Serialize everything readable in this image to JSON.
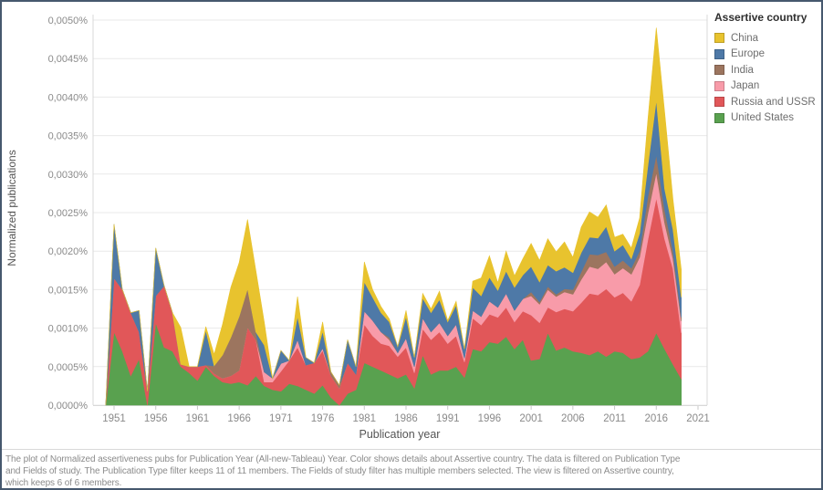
{
  "legend": {
    "title": "Assertive country",
    "items": [
      {
        "label": "China",
        "color": "#E8C32E"
      },
      {
        "label": "Europe",
        "color": "#4E79A7"
      },
      {
        "label": "India",
        "color": "#9C755F"
      },
      {
        "label": "Japan",
        "color": "#F89BA9"
      },
      {
        "label": "Russia and USSR",
        "color": "#E15759"
      },
      {
        "label": "United States",
        "color": "#59A14F"
      }
    ]
  },
  "caption": {
    "lines": [
      "The plot of Normalized assertiveness pubs for Publication Year (All-new-Tableau) Year.  Color shows details about Assertive country. The data is filtered on Publication Type",
      "and Fields of study. The Publication Type filter keeps 11 of 11 members. The Fields of study filter has multiple members selected. The view is filtered on Assertive country,",
      "which keeps 6 of 6 members."
    ]
  },
  "chart_data": {
    "type": "area",
    "stacked": true,
    "title": "",
    "xlabel": "Publication year",
    "ylabel": "Normalized publications",
    "unit": "percent of publications",
    "grid": true,
    "legend_position": "right",
    "ylim": [
      0,
      0.005
    ],
    "yticks": [
      0,
      0.0005,
      0.001,
      0.0015,
      0.002,
      0.0025,
      0.003,
      0.0035,
      0.004,
      0.0045,
      0.005
    ],
    "ytick_labels": [
      "0,0000%",
      "0,0005%",
      "0,0010%",
      "0,0015%",
      "0,0020%",
      "0,0025%",
      "0,0030%",
      "0,0035%",
      "0,0040%",
      "0,0045%",
      "0,0050%"
    ],
    "xticks": [
      1951,
      1956,
      1961,
      1966,
      1971,
      1976,
      1981,
      1986,
      1991,
      1996,
      2001,
      2006,
      2011,
      2016,
      2021
    ],
    "xtick_labels": [
      "1951",
      "1956",
      "1961",
      "1966",
      "1971",
      "1976",
      "1981",
      "1986",
      "1991",
      "1996",
      "2001",
      "2006",
      "2011",
      "2016",
      "2021"
    ],
    "stack_order_bottom_to_top": [
      "United States",
      "Russia and USSR",
      "Japan",
      "India",
      "Europe",
      "China"
    ],
    "x": [
      1950,
      1951,
      1952,
      1953,
      1954,
      1955,
      1956,
      1957,
      1958,
      1959,
      1960,
      1961,
      1962,
      1963,
      1964,
      1965,
      1966,
      1967,
      1968,
      1969,
      1970,
      1971,
      1972,
      1973,
      1974,
      1975,
      1976,
      1977,
      1978,
      1979,
      1980,
      1981,
      1982,
      1983,
      1984,
      1985,
      1986,
      1987,
      1988,
      1989,
      1990,
      1991,
      1992,
      1993,
      1994,
      1995,
      1996,
      1997,
      1998,
      1999,
      2000,
      2001,
      2002,
      2003,
      2004,
      2005,
      2006,
      2007,
      2008,
      2009,
      2010,
      2011,
      2012,
      2013,
      2014,
      2015,
      2016,
      2017,
      2018,
      2019
    ],
    "series": [
      {
        "name": "China",
        "color": "#E8C32E",
        "values": [
          0,
          0,
          0,
          0,
          0,
          0,
          0,
          0,
          0,
          0.00048,
          0,
          0,
          5e-05,
          0.00015,
          0.0004,
          0.00065,
          0.0007,
          0.0009,
          0.0008,
          0.0003,
          0,
          0,
          0,
          0.00026,
          0,
          0,
          0.00012,
          0,
          0,
          0,
          0,
          0.00026,
          0.0001,
          8e-05,
          4e-05,
          0,
          8e-05,
          0,
          6e-05,
          5e-05,
          0.00011,
          2e-05,
          5e-05,
          0,
          8e-05,
          0.00023,
          0.00028,
          0.0001,
          0.00026,
          0.00015,
          0.00021,
          0.0003,
          0.00028,
          0.00034,
          0.00025,
          0.00033,
          0.0002,
          0.00033,
          0.00033,
          0.00027,
          0.00028,
          0.00018,
          0.00014,
          0.00014,
          0.0002,
          0.0006,
          0.00094,
          0.001,
          0.00039,
          0.00036
        ]
      },
      {
        "name": "Europe",
        "color": "#4E79A7",
        "values": [
          0,
          0.0007,
          0,
          0,
          0.00028,
          0,
          0.00062,
          0,
          0,
          0,
          0,
          0,
          0.00045,
          0,
          0,
          0,
          0,
          0,
          0,
          0.00035,
          0,
          0.00017,
          0,
          0.0003,
          0.0001,
          0,
          0.00022,
          0,
          0,
          0.0003,
          0.0001,
          0.00038,
          0.0003,
          0.00025,
          0.0002,
          8e-05,
          0.00028,
          0.00012,
          0.00026,
          0.00025,
          0.0003,
          0.00018,
          0.00025,
          0.00012,
          0.0003,
          0.00027,
          0.00031,
          0.00022,
          0.00029,
          0.0003,
          0.00031,
          0.00033,
          0.00026,
          0.00028,
          0.0003,
          0.00028,
          0.00022,
          0.00025,
          0.00022,
          0.00022,
          0.00033,
          0.0002,
          0.0002,
          0.00012,
          0.00023,
          0.0004,
          0.00071,
          0.00027,
          0.00028,
          0.00026
        ]
      },
      {
        "name": "India",
        "color": "#9C755F",
        "values": [
          0,
          0,
          0,
          0,
          0,
          0,
          0,
          0,
          0,
          0,
          0,
          0,
          0,
          0.0001,
          0.0003,
          0.0005,
          0.0007,
          0.0005,
          0.0001,
          0,
          0,
          0,
          0,
          0,
          0,
          0,
          0,
          5e-05,
          4e-05,
          0,
          0,
          0,
          0,
          0,
          3e-05,
          0,
          0,
          0,
          0,
          0,
          0,
          0,
          0,
          0,
          0,
          0,
          0,
          0,
          0,
          0,
          0,
          5e-05,
          3e-05,
          4e-05,
          3e-05,
          4e-05,
          6e-05,
          0.0001,
          0.00016,
          0.00018,
          0.00013,
          0.0001,
          0.0001,
          8e-05,
          8e-05,
          0.00022,
          0.00023,
          0.00017,
          0.0001,
          5e-05
        ]
      },
      {
        "name": "Japan",
        "color": "#F89BA9",
        "values": [
          0,
          0,
          0,
          0,
          0,
          0,
          0,
          0,
          0,
          0,
          0,
          0,
          0,
          0,
          0,
          0,
          0,
          0,
          0,
          0.00013,
          5e-05,
          0.0001,
          0,
          0.0001,
          0,
          0,
          3e-05,
          0,
          0,
          0,
          0,
          0.00017,
          0.0002,
          0.00015,
          8e-05,
          5e-05,
          0.00012,
          8e-05,
          0.00014,
          0.0001,
          0.00012,
          0.0001,
          0.00015,
          5e-05,
          0.0001,
          0.00011,
          0.00017,
          0.00013,
          0.00018,
          0.00015,
          0.00016,
          0.00025,
          0.00024,
          0.00023,
          0.0002,
          0.00022,
          0.00022,
          0.0003,
          0.00035,
          0.00034,
          0.00035,
          0.0003,
          0.00032,
          0.00035,
          0.00036,
          0.00034,
          0.00033,
          0.00021,
          0.00013,
          0.00015
        ]
      },
      {
        "name": "Russia and USSR",
        "color": "#E15759",
        "values": [
          0,
          0.0007,
          0.0008,
          0.00082,
          0.00035,
          0.00018,
          0.00035,
          0.0008,
          0.0005,
          3e-05,
          8e-05,
          0.00018,
          2e-05,
          3e-05,
          5e-05,
          0.0001,
          0.00015,
          0.00075,
          0.00047,
          5e-05,
          0.0001,
          0.00026,
          0.0003,
          0.0005,
          0.00032,
          0.0004,
          0.00045,
          0.00028,
          0.00022,
          0.0004,
          0.0002,
          0.0005,
          0.0004,
          0.00035,
          0.00037,
          0.00028,
          0.00035,
          0.0002,
          0.00034,
          0.00045,
          0.0005,
          0.00035,
          0.0004,
          0.0002,
          0.0004,
          0.00034,
          0.00036,
          0.00034,
          0.00038,
          0.00035,
          0.00037,
          0.00059,
          0.00047,
          0.00033,
          0.0005,
          0.0005,
          0.00052,
          0.00065,
          0.0008,
          0.00073,
          0.00088,
          0.0007,
          0.00078,
          0.00075,
          0.00094,
          0.00145,
          0.00175,
          0.00143,
          0.00124,
          0.0006
        ]
      },
      {
        "name": "United States",
        "color": "#59A14F",
        "values": [
          0,
          0.00095,
          0.0007,
          0.00038,
          0.0006,
          0,
          0.00107,
          0.00075,
          0.0007,
          0.0005,
          0.00042,
          0.00032,
          0.0005,
          0.00038,
          0.0003,
          0.00028,
          0.0003,
          0.00026,
          0.00038,
          0.00025,
          0.0002,
          0.00018,
          0.00028,
          0.00025,
          0.0002,
          0.00015,
          0.00026,
          0.0001,
          0,
          0.00015,
          0.0002,
          0.00055,
          0.0005,
          0.00045,
          0.0004,
          0.00035,
          0.0004,
          0.00022,
          0.00065,
          0.0004,
          0.00045,
          0.00045,
          0.0005,
          0.00036,
          0.00073,
          0.0007,
          0.00082,
          0.0008,
          0.00089,
          0.00073,
          0.00085,
          0.00058,
          0.0006,
          0.00094,
          0.00071,
          0.00075,
          0.0007,
          0.00068,
          0.00065,
          0.0007,
          0.00063,
          0.0007,
          0.00068,
          0.0006,
          0.00062,
          0.0007,
          0.00094,
          0.00073,
          0.00053,
          0.00034
        ]
      }
    ]
  }
}
